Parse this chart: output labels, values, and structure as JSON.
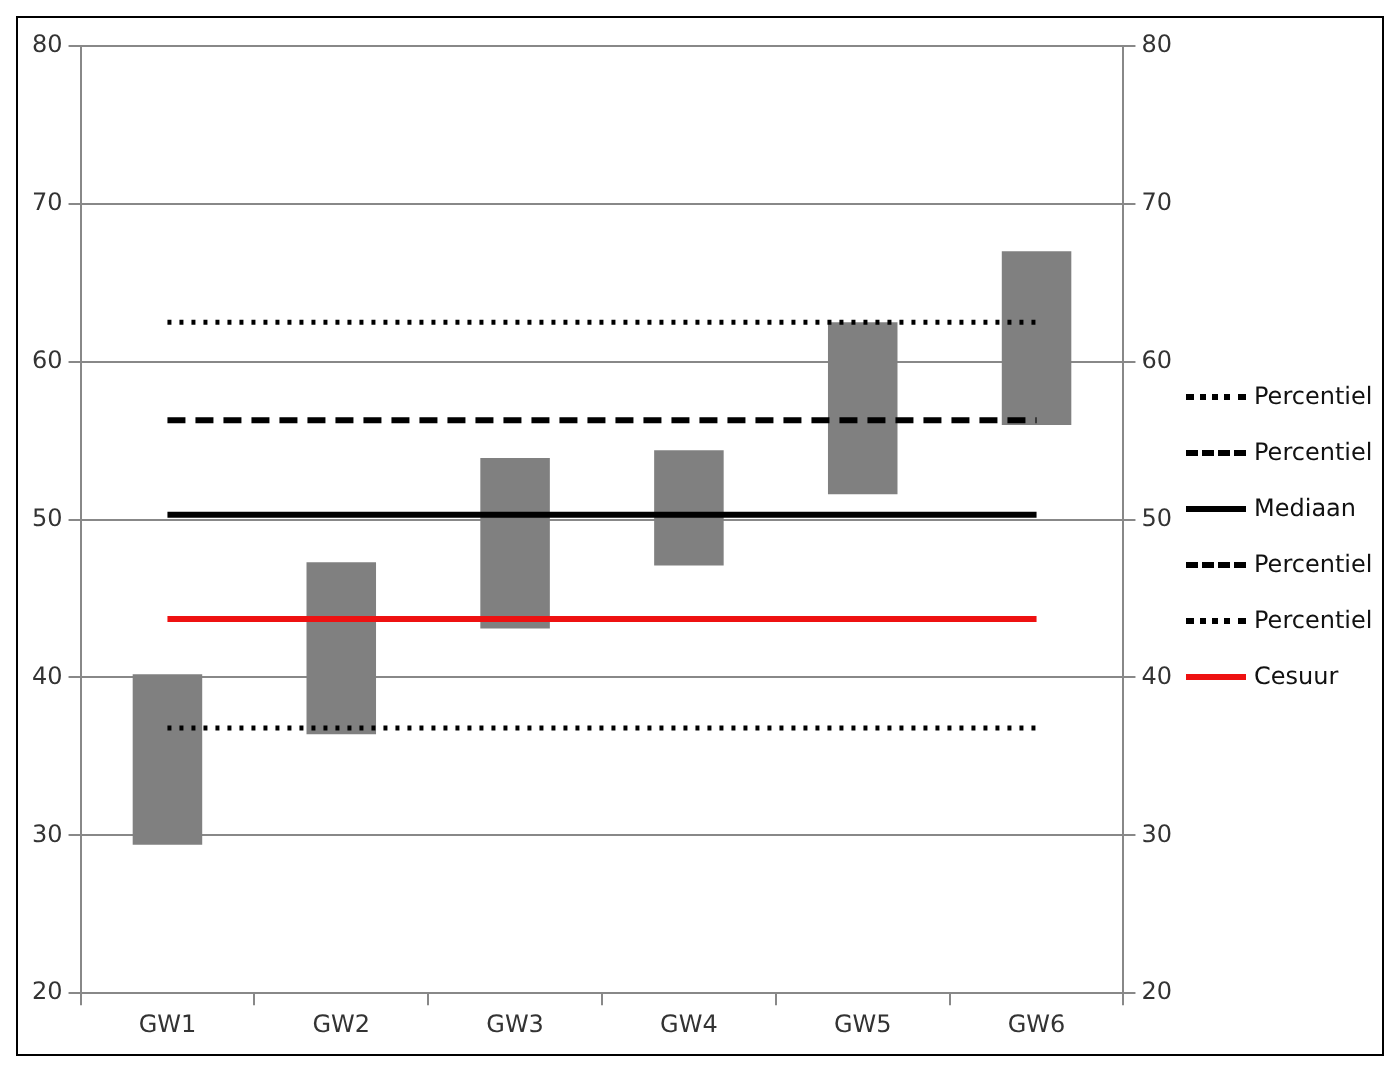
{
  "chart_data": {
    "type": "bar",
    "categories": [
      "GW1",
      "GW2",
      "GW3",
      "GW4",
      "GW5",
      "GW6"
    ],
    "series": [
      {
        "color": "#808080",
        "base": [
          29.4,
          36.4,
          43.1,
          47.1,
          51.6,
          56.0
        ],
        "values": [
          10.8,
          10.9,
          10.8,
          7.3,
          10.9,
          11.0
        ]
      },
      {
        "type": "line",
        "name": "Percentiel",
        "color": "#000000",
        "line_style": "dotted",
        "values": [
          62.5,
          62.5,
          62.5,
          62.5,
          62.5,
          62.5
        ]
      },
      {
        "type": "line",
        "name": "Percentiel",
        "color": "#000000",
        "line_style": "dashed",
        "values": [
          56.3,
          56.3,
          56.3,
          56.3,
          56.3,
          56.3
        ]
      },
      {
        "type": "line",
        "name": "Mediaan",
        "color": "#000000",
        "line_style": "solid",
        "values": [
          50.3,
          50.3,
          50.3,
          50.3,
          50.3,
          50.3
        ]
      },
      {
        "type": "line",
        "name": "Percentiel",
        "color": "#000000",
        "line_style": "dashed",
        "values": [
          null,
          null,
          null,
          null,
          null,
          null
        ]
      },
      {
        "type": "line",
        "name": "Percentiel",
        "color": "#000000",
        "line_style": "dotted",
        "values": [
          36.8,
          36.8,
          36.8,
          36.8,
          36.8,
          36.8
        ]
      },
      {
        "type": "line",
        "name": "Cesuur",
        "color": "#ee1111",
        "line_style": "solid",
        "values": [
          43.7,
          43.7,
          43.7,
          43.7,
          43.7,
          43.7
        ]
      }
    ],
    "ylim": [
      20,
      80
    ],
    "yticks": [
      20,
      30,
      40,
      50,
      60,
      70,
      80
    ],
    "y2lim": [
      20,
      80
    ],
    "y2ticks": [
      20,
      30,
      40,
      50,
      60,
      70,
      80
    ],
    "grid": "y",
    "legend": "right",
    "marker": "none"
  }
}
